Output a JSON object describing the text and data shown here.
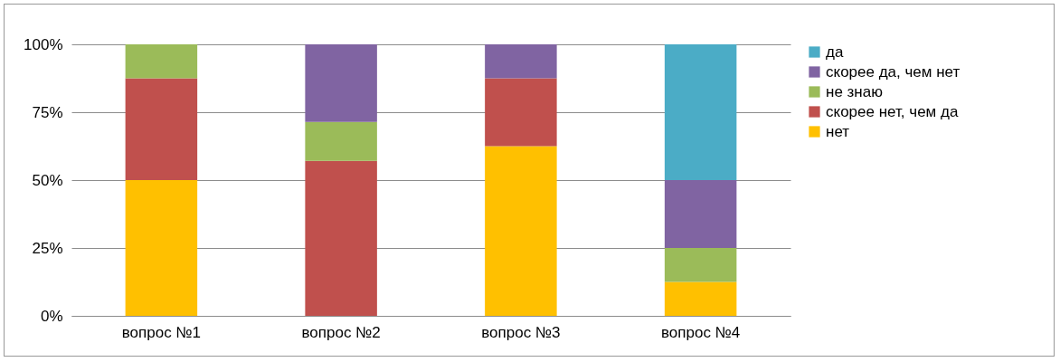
{
  "chart_data": {
    "type": "bar",
    "stacked": true,
    "categories": [
      "вопрос №1",
      "вопрос №2",
      "вопрос №3",
      "вопрос №4"
    ],
    "series": [
      {
        "name": "нет",
        "color": "#ffc000",
        "values": [
          50,
          0,
          62.5,
          12.5
        ]
      },
      {
        "name": "скорее нет, чем да",
        "color": "#c0504d",
        "values": [
          37.5,
          57.1,
          25,
          0
        ]
      },
      {
        "name": "не знаю",
        "color": "#9bbb59",
        "values": [
          12.5,
          14.3,
          0,
          12.5
        ]
      },
      {
        "name": "скорее да, чем нет",
        "color": "#8064a2",
        "values": [
          0,
          28.6,
          12.5,
          25
        ]
      },
      {
        "name": "да",
        "color": "#4bacc6",
        "values": [
          0,
          0,
          0,
          50
        ]
      }
    ],
    "ylim": [
      0,
      100
    ],
    "yticks": [
      {
        "value": 0,
        "label": "0%"
      },
      {
        "value": 25,
        "label": "25%"
      },
      {
        "value": 50,
        "label": "50%"
      },
      {
        "value": 75,
        "label": "75%"
      },
      {
        "value": 100,
        "label": "100%"
      }
    ],
    "grid": "y",
    "legend": "right"
  }
}
